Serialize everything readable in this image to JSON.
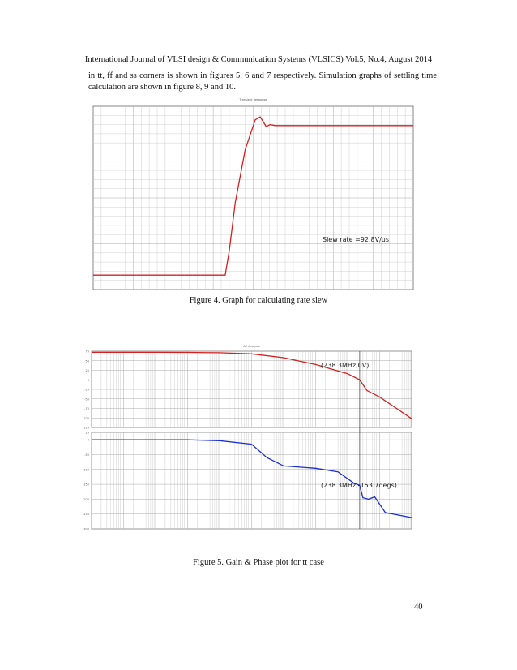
{
  "header": "International Journal of VLSI design & Communication Systems (VLSICS) Vol.5, No.4, August 2014",
  "paragraph": "in tt, ff and ss corners is shown in figures 5, 6 and 7 respectively. Simulation graphs of settling time calculation are shown in figure 8, 9 and 10.",
  "page_number": "40",
  "colors": {
    "trace_red": "#d42020",
    "trace_blue": "#1a2fd0",
    "grid": "#cfcfcf",
    "grid_major": "#a8a8a8"
  },
  "figure4": {
    "caption": "Figure 4. Graph for calculating rate slew",
    "plot_title": "Transient Response",
    "annotation": "Slew rate =92.8V/us",
    "chart_data": {
      "type": "line",
      "xlim": [
        0,
        3.2
      ],
      "ylim": [
        -1.9,
        1.9
      ],
      "series": [
        {
          "x": [
            0,
            1.32,
            1.36,
            1.42,
            1.52,
            1.62,
            1.67,
            1.7,
            1.73,
            1.77,
            1.82,
            1.88,
            3.2
          ],
          "y": [
            -1.6,
            -1.6,
            -1.1,
            -0.1,
            1.0,
            1.62,
            1.68,
            1.58,
            1.48,
            1.52,
            1.5,
            1.5,
            1.5
          ]
        }
      ]
    }
  },
  "figure5": {
    "caption": "Figure 5. Gain & Phase plot for tt case",
    "plot_title": "AC Analysis",
    "gain_annotation": "(238.3MHz,0V)",
    "phase_annotation": "(238.3MHz,-153.7degs)",
    "chart_data": [
      {
        "type": "line",
        "xscale": "log",
        "xlim": [
          1,
          10000000000
        ],
        "ylim": [
          -125,
          75
        ],
        "yticks": [
          75,
          50,
          25,
          0,
          -25,
          -50,
          -75,
          -100,
          -125
        ],
        "series": [
          {
            "x": [
              1,
              10,
              100,
              1000,
              10000,
              100000,
              1000000,
              10000000,
              100000000,
              238300000,
              400000000,
              1000000000,
              10000000000
            ],
            "y": [
              72,
              72,
              72,
              71.8,
              71,
              68,
              58,
              40,
              16,
              0,
              -28,
              -45,
              -102
            ]
          }
        ]
      },
      {
        "type": "line",
        "xscale": "log",
        "xlim": [
          1,
          10000000000
        ],
        "ylim": [
          -300,
          25
        ],
        "yticks": [
          25,
          0,
          -50,
          -100,
          -150,
          -200,
          -250,
          -300
        ],
        "series": [
          {
            "x": [
              1,
              1000,
              10000,
              100000,
              300000,
              1000000,
              10000000,
              50000000,
              150000000,
              238300000,
              300000000,
              450000000,
              700000000,
              1500000000,
              10000000000
            ],
            "y": [
              0,
              0,
              -3,
              -15,
              -60,
              -88,
              -96,
              -108,
              -145,
              -153.7,
              -195,
              -200,
              -192,
              -245,
              -262
            ]
          }
        ]
      }
    ]
  }
}
